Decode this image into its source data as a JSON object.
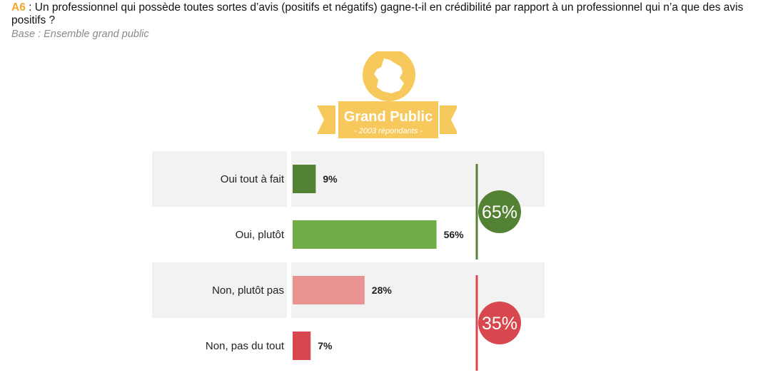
{
  "header": {
    "question_id": "A6",
    "question_text": " : Un professionnel qui possède toutes sortes d’avis (positifs et négatifs) gagne-t-il en crédibilité par rapport à un professionnel qui n’a que des avis positifs ?",
    "base": "Base : Ensemble grand public"
  },
  "badge": {
    "title": "Grand Public",
    "subtitle": "- 2003 répondants -",
    "icon": "france-map-icon",
    "color": "#f7c85c"
  },
  "chart_data": {
    "type": "bar",
    "orientation": "horizontal",
    "categories": [
      "Oui tout à fait",
      "Oui, plutôt",
      "Non, plutôt pas",
      "Non, pas du tout"
    ],
    "values": [
      9,
      56,
      28,
      7
    ],
    "value_labels": [
      "9%",
      "56%",
      "28%",
      "7%"
    ],
    "bar_colors": [
      "#548235",
      "#70ad47",
      "#e99493",
      "#d9474e"
    ],
    "xlim": [
      0,
      65
    ],
    "grid": false,
    "groups": [
      {
        "label": "65%",
        "value": 65,
        "members": [
          0,
          1
        ],
        "color": "#548235"
      },
      {
        "label": "35%",
        "value": 35,
        "members": [
          2,
          3
        ],
        "color": "#d9474e"
      }
    ]
  }
}
